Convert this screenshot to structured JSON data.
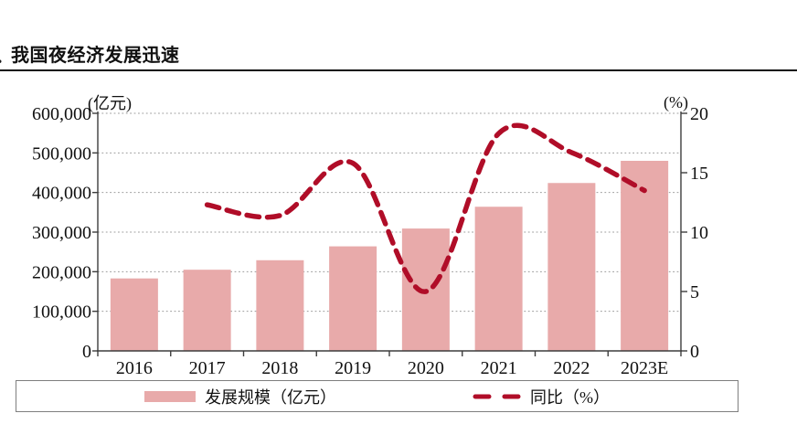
{
  "figure": {
    "title": "我国夜经济发展迅速",
    "cropped_prefix_fragment": "."
  },
  "chart_data": {
    "type": "bar+line",
    "title": "我国夜经济发展迅速",
    "categories": [
      "2016",
      "2017",
      "2018",
      "2019",
      "2020",
      "2021",
      "2022",
      "2023E"
    ],
    "series": [
      {
        "name": "发展规模（亿元）",
        "type": "bar",
        "axis": "left",
        "color": "#e8aaaa",
        "values": [
          183000,
          205000,
          229000,
          264000,
          309000,
          364000,
          424000,
          480000
        ]
      },
      {
        "name": "同比（%）",
        "type": "line",
        "axis": "right",
        "style": "dashed",
        "color": "#b00d28",
        "values": [
          null,
          12.3,
          11.4,
          15.8,
          5.0,
          18.3,
          16.7,
          13.5
        ]
      }
    ],
    "left_axis": {
      "unit_label": "(亿元)",
      "min": 0,
      "max": 600000,
      "tick_values": [
        0,
        100000,
        200000,
        300000,
        400000,
        500000,
        600000
      ],
      "tick_labels": [
        "0",
        "100,000",
        "200,000",
        "300,000",
        "400,000",
        "500,000",
        "600,000"
      ]
    },
    "right_axis": {
      "unit_label": "(%)",
      "min": 0,
      "max": 20,
      "tick_values": [
        0,
        5,
        10,
        15,
        20
      ],
      "tick_labels": [
        "0",
        "5",
        "10",
        "15",
        "20"
      ]
    },
    "grid": "horizontal-dotted",
    "legend_position": "bottom"
  },
  "legend": {
    "items": [
      {
        "label": "发展规模（亿元）",
        "swatch": "bar"
      },
      {
        "label": "同比（%）",
        "swatch": "dashed-line"
      }
    ]
  },
  "colors": {
    "bar": "#e8aaaa",
    "line": "#b00d28",
    "grid": "#9c9c9c",
    "axis": "#3d3d3d",
    "text": "#111111",
    "legend_border": "#7f7f7f"
  }
}
